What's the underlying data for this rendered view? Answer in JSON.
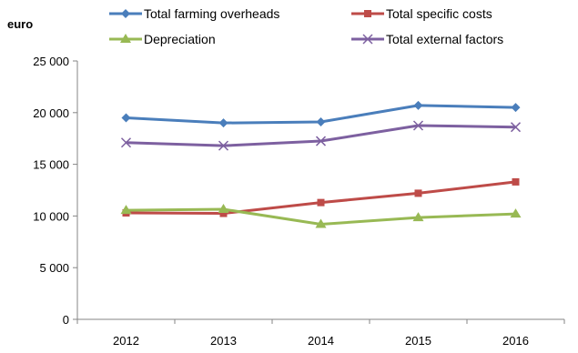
{
  "chart_data": {
    "type": "line",
    "ylabel": "euro",
    "xlabel": "",
    "categories": [
      "2012",
      "2013",
      "2014",
      "2015",
      "2016"
    ],
    "ylim": [
      0,
      25000
    ],
    "yticks": [
      0,
      5000,
      10000,
      15000,
      20000,
      25000
    ],
    "ytick_labels": [
      "0",
      "5 000",
      "10 000",
      "15 000",
      "20 000",
      "25 000"
    ],
    "grid": false,
    "legend_position": "top",
    "series": [
      {
        "name": "Total farming overheads",
        "values": [
          19500,
          19000,
          19100,
          20700,
          20500
        ],
        "color": "#4a7ebb",
        "marker": "diamond"
      },
      {
        "name": "Total specific costs",
        "values": [
          10300,
          10250,
          11300,
          12200,
          13300
        ],
        "color": "#be4b48",
        "marker": "square"
      },
      {
        "name": "Depreciation",
        "values": [
          10550,
          10650,
          9200,
          9850,
          10200
        ],
        "color": "#98b954",
        "marker": "triangle"
      },
      {
        "name": "Total external factors",
        "values": [
          17100,
          16800,
          17250,
          18750,
          18600
        ],
        "color": "#7d60a0",
        "marker": "x"
      }
    ]
  }
}
